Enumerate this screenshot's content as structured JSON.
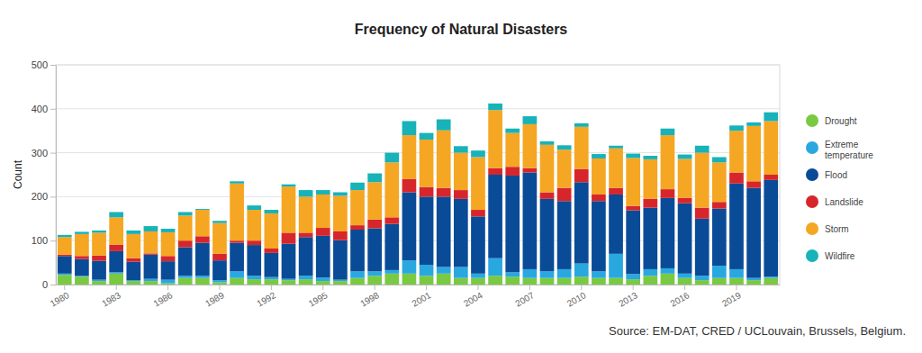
{
  "chart_data": {
    "type": "bar",
    "title": "Frequency of Natural Disasters",
    "y_label": "Count",
    "annotations": [
      "Source: EM-DAT, CRED / UCLouvain, Brussels, Belgium."
    ],
    "stacked": true,
    "grid": true,
    "legend": "right",
    "ylim": [
      0,
      500
    ],
    "yticks": [
      0,
      100,
      200,
      300,
      400,
      500
    ],
    "categories": [
      "1980",
      null,
      null,
      "1983",
      null,
      null,
      "1986",
      null,
      null,
      "1989",
      null,
      null,
      "1992",
      null,
      null,
      "1995",
      null,
      null,
      "1998",
      null,
      null,
      "2001",
      null,
      null,
      "2004",
      null,
      null,
      "2007",
      null,
      null,
      "2010",
      null,
      null,
      "2013",
      null,
      null,
      "2016",
      null,
      null,
      "2019",
      null,
      null
    ],
    "series": [
      {
        "name": "Drought",
        "color": "#7ac943",
        "values": [
          22,
          18,
          8,
          25,
          8,
          8,
          3,
          15,
          15,
          5,
          15,
          12,
          12,
          10,
          12,
          8,
          8,
          15,
          20,
          25,
          25,
          20,
          25,
          15,
          15,
          20,
          18,
          15,
          15,
          15,
          18,
          15,
          15,
          12,
          20,
          25,
          15,
          10,
          15,
          15,
          10,
          15
        ]
      },
      {
        "name": "Extreme temperature",
        "color": "#29a8e0",
        "values": [
          3,
          2,
          3,
          3,
          2,
          5,
          8,
          5,
          5,
          5,
          15,
          8,
          5,
          3,
          8,
          8,
          3,
          15,
          10,
          8,
          30,
          25,
          15,
          25,
          10,
          40,
          10,
          20,
          15,
          20,
          30,
          15,
          55,
          12,
          15,
          12,
          10,
          10,
          28,
          20,
          5,
          3
        ]
      },
      {
        "name": "Flood",
        "color": "#0a4b97",
        "values": [
          40,
          38,
          43,
          48,
          42,
          55,
          42,
          65,
          75,
          45,
          65,
          70,
          55,
          80,
          88,
          95,
          90,
          95,
          98,
          105,
          155,
          155,
          160,
          155,
          130,
          190,
          220,
          220,
          165,
          155,
          185,
          160,
          135,
          145,
          140,
          160,
          160,
          130,
          130,
          195,
          205,
          220
        ]
      },
      {
        "name": "Landslide",
        "color": "#d7262b",
        "values": [
          3,
          7,
          12,
          15,
          8,
          3,
          12,
          15,
          15,
          15,
          5,
          10,
          10,
          25,
          10,
          18,
          20,
          10,
          20,
          15,
          30,
          22,
          20,
          20,
          15,
          15,
          20,
          10,
          15,
          30,
          30,
          15,
          15,
          10,
          20,
          20,
          12,
          25,
          15,
          25,
          15,
          12
        ]
      },
      {
        "name": "Storm",
        "color": "#f5a623",
        "values": [
          40,
          50,
          52,
          62,
          55,
          50,
          54,
          57,
          60,
          70,
          130,
          70,
          80,
          105,
          82,
          76,
          81,
          80,
          85,
          125,
          100,
          108,
          131,
          85,
          120,
          132,
          77,
          100,
          108,
          87,
          96,
          82,
          90,
          109,
          90,
          123,
          89,
          125,
          90,
          95,
          126,
          122
        ]
      },
      {
        "name": "Wildfire",
        "color": "#17b3b8",
        "values": [
          5,
          5,
          5,
          12,
          8,
          12,
          8,
          8,
          2,
          5,
          5,
          10,
          8,
          5,
          15,
          10,
          8,
          17,
          20,
          22,
          32,
          15,
          25,
          15,
          15,
          15,
          10,
          18,
          8,
          10,
          8,
          10,
          6,
          10,
          8,
          15,
          10,
          16,
          12,
          12,
          8,
          20
        ]
      }
    ]
  }
}
